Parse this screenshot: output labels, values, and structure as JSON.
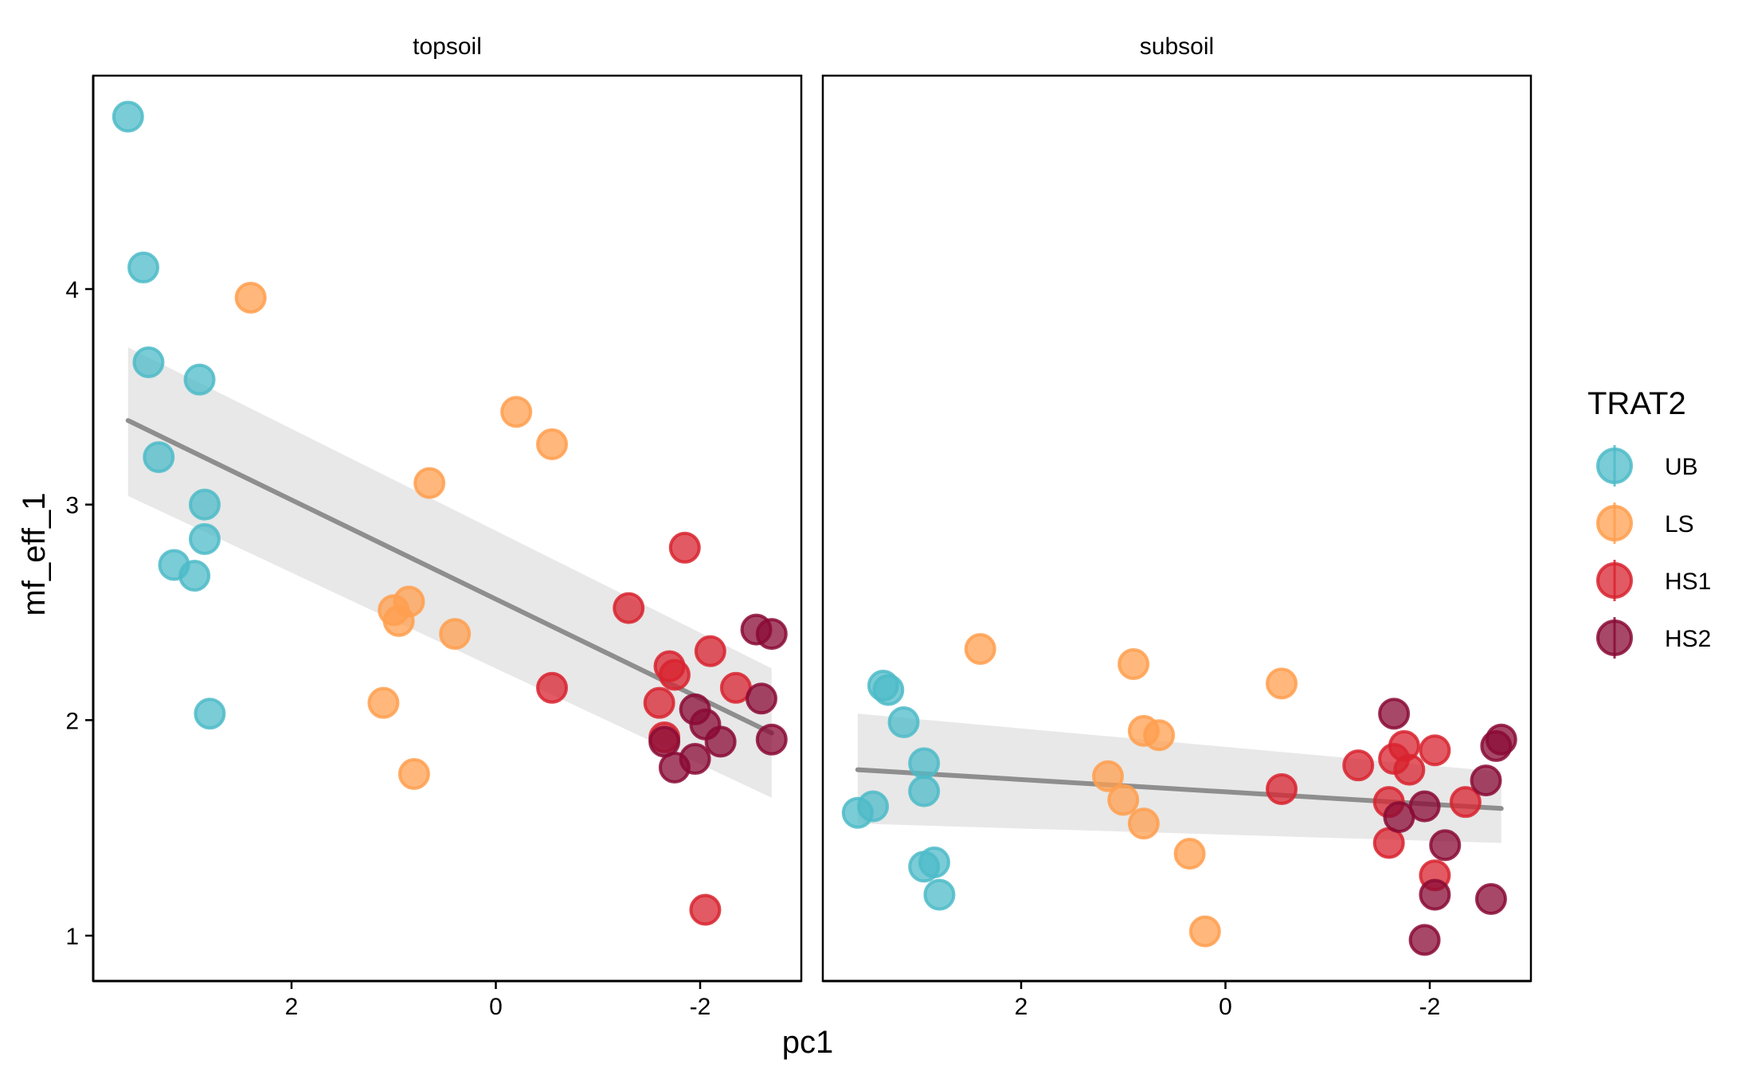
{
  "colors": {
    "UB": "#4DBBC8",
    "LS": "#FF9F4F",
    "HS1": "#D8232F",
    "HS2": "#8A0B35",
    "trend_line": "#8E8E8E",
    "confidence_band": "#E6E6E6"
  },
  "chart_data": {
    "type": "scatter",
    "xlabel": "pc1",
    "ylabel": "mf_eff_1",
    "x_axis_reversed": true,
    "xlim": [
      3.75,
      -3.0
    ],
    "ylim": [
      0.8,
      4.9
    ],
    "x_ticks": [
      {
        "value": 2,
        "label": "2"
      },
      {
        "value": 0,
        "label": "0"
      },
      {
        "value": -2,
        "label": "-2"
      }
    ],
    "y_ticks": [
      {
        "value": 1,
        "label": "1"
      },
      {
        "value": 2,
        "label": "2"
      },
      {
        "value": 3,
        "label": "3"
      },
      {
        "value": 4,
        "label": "4"
      }
    ],
    "grid": false,
    "legend": {
      "title": "TRAT2",
      "position": "right",
      "entries": [
        "UB",
        "LS",
        "HS1",
        "HS2"
      ]
    },
    "panels": [
      {
        "strip": "topsoil",
        "trend": {
          "x": [
            3.6,
            -2.7
          ],
          "y": [
            3.39,
            1.94
          ],
          "ci_lower": [
            3.04,
            1.64
          ],
          "ci_upper": [
            3.73,
            2.24
          ]
        },
        "series": [
          {
            "name": "UB",
            "x": [
              3.6,
              3.45,
              3.4,
              3.3,
              2.9,
              2.85,
              2.95,
              2.85,
              3.15,
              2.8
            ],
            "y": [
              4.8,
              4.1,
              3.66,
              3.22,
              3.58,
              3.0,
              2.67,
              2.84,
              2.72,
              2.03
            ]
          },
          {
            "name": "LS",
            "x": [
              2.4,
              -0.2,
              -0.55,
              0.65,
              0.85,
              1.0,
              0.95,
              0.4,
              1.1,
              0.8
            ],
            "y": [
              3.96,
              3.43,
              3.28,
              3.1,
              2.55,
              2.51,
              2.46,
              2.4,
              2.08,
              1.75
            ]
          },
          {
            "name": "HS1",
            "x": [
              -1.85,
              -1.3,
              -1.7,
              -1.75,
              -2.1,
              -2.35,
              -0.55,
              -1.6,
              -1.65,
              -2.05
            ],
            "y": [
              2.8,
              2.52,
              2.25,
              2.21,
              2.32,
              2.15,
              2.15,
              2.08,
              1.92,
              1.12
            ]
          },
          {
            "name": "HS2",
            "x": [
              -2.55,
              -2.7,
              -2.6,
              -1.95,
              -2.05,
              -2.2,
              -2.7,
              -1.65,
              -1.95,
              -1.75
            ],
            "y": [
              2.42,
              2.4,
              2.1,
              2.05,
              1.98,
              1.9,
              1.91,
              1.9,
              1.82,
              1.78
            ]
          }
        ]
      },
      {
        "strip": "subsoil",
        "trend": {
          "x": [
            3.6,
            -2.7
          ],
          "y": [
            1.77,
            1.59
          ],
          "ci_lower": [
            1.52,
            1.43
          ],
          "ci_upper": [
            2.03,
            1.76
          ]
        },
        "series": [
          {
            "name": "UB",
            "x": [
              3.35,
              3.3,
              3.15,
              2.95,
              2.95,
              3.6,
              3.45,
              2.95,
              2.85,
              2.8
            ],
            "y": [
              2.16,
              2.14,
              1.99,
              1.8,
              1.67,
              1.57,
              1.6,
              1.32,
              1.34,
              1.19
            ]
          },
          {
            "name": "LS",
            "x": [
              2.4,
              0.9,
              0.8,
              0.65,
              1.15,
              1.0,
              0.8,
              0.35,
              0.2,
              -0.55
            ],
            "y": [
              2.33,
              2.26,
              1.95,
              1.93,
              1.74,
              1.63,
              1.52,
              1.38,
              1.02,
              2.17
            ]
          },
          {
            "name": "HS1",
            "x": [
              -1.75,
              -1.65,
              -2.05,
              -1.3,
              -0.55,
              -1.8,
              -1.6,
              -2.35,
              -1.6,
              -2.05
            ],
            "y": [
              1.88,
              1.82,
              1.86,
              1.79,
              1.68,
              1.77,
              1.62,
              1.62,
              1.43,
              1.28
            ]
          },
          {
            "name": "HS2",
            "x": [
              -1.65,
              -2.7,
              -2.65,
              -2.55,
              -1.95,
              -1.7,
              -2.15,
              -2.05,
              -2.6,
              -1.95
            ],
            "y": [
              2.03,
              1.91,
              1.88,
              1.72,
              1.6,
              1.55,
              1.42,
              1.19,
              1.17,
              0.98
            ]
          }
        ]
      }
    ]
  }
}
